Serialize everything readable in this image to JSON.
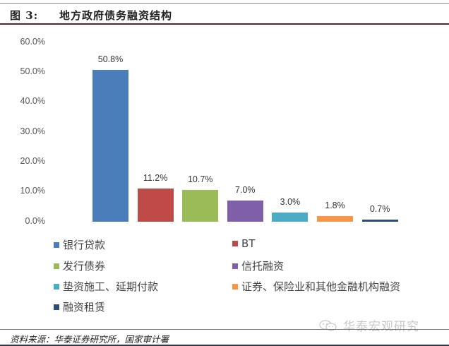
{
  "header": {
    "figure_label": "图 3:",
    "title": "地方政府债务融资结构"
  },
  "chart_data": {
    "type": "bar",
    "title": "地方政府债务融资结构",
    "xlabel": "",
    "ylabel": "",
    "ylim": [
      0,
      60
    ],
    "yticks": [
      "60.0%",
      "50.0%",
      "40.0%",
      "30.0%",
      "20.0%",
      "10.0%",
      "0.0%"
    ],
    "grid": false,
    "legend_position": "bottom",
    "categories": [
      "银行贷款",
      "BT",
      "发行债券",
      "信托融资",
      "垫资施工、延期付款",
      "证券、保险业和其他金融机构融资",
      "融资租赁"
    ],
    "values": [
      50.8,
      11.2,
      10.7,
      7.0,
      3.0,
      1.8,
      0.7
    ],
    "value_labels": [
      "50.8%",
      "11.2%",
      "10.7%",
      "7.0%",
      "3.0%",
      "1.8%",
      "0.7%"
    ],
    "colors": [
      "#4a7ebb",
      "#be4b48",
      "#9bbb59",
      "#7f60a8",
      "#4bacc6",
      "#f79646",
      "#2c4d75"
    ]
  },
  "legend": {
    "items": [
      {
        "label": "银行贷款",
        "color": "#4a7ebb"
      },
      {
        "label": "BT",
        "color": "#be4b48"
      },
      {
        "label": "发行债券",
        "color": "#9bbb59"
      },
      {
        "label": "信托融资",
        "color": "#7f60a8"
      },
      {
        "label": "垫资施工、延期付款",
        "color": "#4bacc6"
      },
      {
        "label": "证券、保险业和其他金融机构融资",
        "color": "#f79646"
      },
      {
        "label": "融资租赁",
        "color": "#2c4d75"
      }
    ]
  },
  "footer": {
    "source": "资料来源：华泰证券研究所，国家审计署",
    "watermark": "华泰宏观研究"
  }
}
